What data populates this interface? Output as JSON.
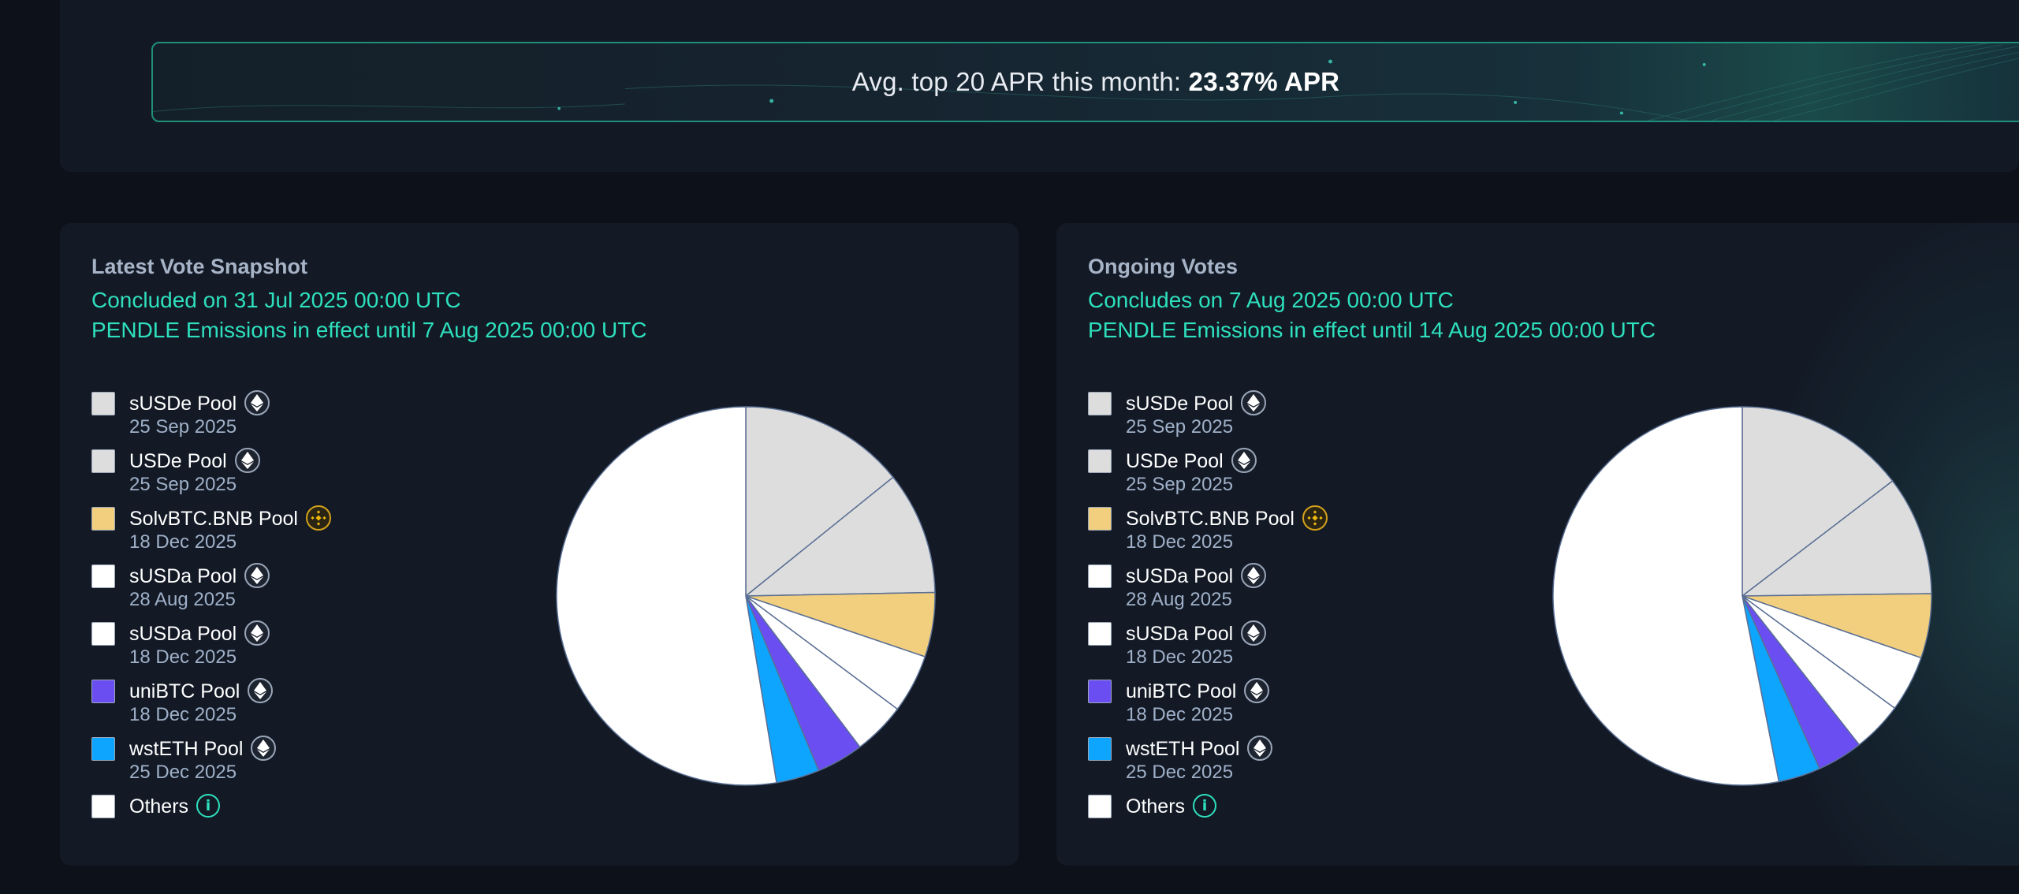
{
  "banner": {
    "label": "Avg. top 20 APR this month:",
    "value": "23.37% APR"
  },
  "colors": {
    "accent": "#2ee0bd",
    "swatch_gray": "#dddddd",
    "swatch_yellow": "#f2cf7f",
    "swatch_white": "#ffffff",
    "swatch_purple": "#6a4ef2",
    "swatch_blue": "#0ea5ff"
  },
  "latest": {
    "title": "Latest Vote Snapshot",
    "concluded": "Concluded on 31 Jul 2025 00:00 UTC",
    "emissions": "PENDLE Emissions in effect until 7 Aug 2025 00:00 UTC",
    "pools": [
      {
        "name": "sUSDe Pool",
        "date": "25 Sep 2025",
        "chain": "ethereum-icon",
        "color": "#dddddd"
      },
      {
        "name": "USDe Pool",
        "date": "25 Sep 2025",
        "chain": "ethereum-icon",
        "color": "#dddddd"
      },
      {
        "name": "SolvBTC.BNB Pool",
        "date": "18 Dec 2025",
        "chain": "bnb-icon",
        "color": "#f2cf7f"
      },
      {
        "name": "sUSDa Pool",
        "date": "28 Aug 2025",
        "chain": "ethereum-icon",
        "color": "#ffffff"
      },
      {
        "name": "sUSDa Pool",
        "date": "18 Dec 2025",
        "chain": "ethereum-icon",
        "color": "#ffffff"
      },
      {
        "name": "uniBTC Pool",
        "date": "18 Dec 2025",
        "chain": "ethereum-icon",
        "color": "#6a4ef2"
      },
      {
        "name": "wstETH Pool",
        "date": "25 Dec 2025",
        "chain": "ethereum-icon",
        "color": "#0ea5ff"
      },
      {
        "name": "Others",
        "date": "",
        "chain": "info-icon",
        "color": "#ffffff"
      }
    ],
    "chart_data": {
      "type": "pie",
      "series": [
        {
          "name": "sUSDe Pool",
          "value": 14.2,
          "color": "#dddddd"
        },
        {
          "name": "USDe Pool",
          "value": 10.5,
          "color": "#dddddd"
        },
        {
          "name": "SolvBTC.BNB Pool",
          "value": 5.5,
          "color": "#f2cf7f"
        },
        {
          "name": "sUSDa Pool",
          "value": 5.0,
          "color": "#ffffff"
        },
        {
          "name": "sUSDa Pool",
          "value": 4.5,
          "color": "#ffffff"
        },
        {
          "name": "uniBTC Pool",
          "value": 4.0,
          "color": "#6a4ef2"
        },
        {
          "name": "wstETH Pool",
          "value": 3.7,
          "color": "#0ea5ff"
        },
        {
          "name": "Others",
          "value": 52.6,
          "color": "#ffffff"
        }
      ]
    }
  },
  "ongoing": {
    "title": "Ongoing Votes",
    "concluded": "Concludes on 7 Aug 2025 00:00 UTC",
    "emissions": "PENDLE Emissions in effect until 14 Aug 2025 00:00 UTC",
    "pools": [
      {
        "name": "sUSDe Pool",
        "date": "25 Sep 2025",
        "chain": "ethereum-icon",
        "color": "#dddddd"
      },
      {
        "name": "USDe Pool",
        "date": "25 Sep 2025",
        "chain": "ethereum-icon",
        "color": "#dddddd"
      },
      {
        "name": "SolvBTC.BNB Pool",
        "date": "18 Dec 2025",
        "chain": "bnb-icon",
        "color": "#f2cf7f"
      },
      {
        "name": "sUSDa Pool",
        "date": "28 Aug 2025",
        "chain": "ethereum-icon",
        "color": "#ffffff"
      },
      {
        "name": "sUSDa Pool",
        "date": "18 Dec 2025",
        "chain": "ethereum-icon",
        "color": "#ffffff"
      },
      {
        "name": "uniBTC Pool",
        "date": "18 Dec 2025",
        "chain": "ethereum-icon",
        "color": "#6a4ef2"
      },
      {
        "name": "wstETH Pool",
        "date": "25 Dec 2025",
        "chain": "ethereum-icon",
        "color": "#0ea5ff"
      },
      {
        "name": "Others",
        "date": "",
        "chain": "info-icon",
        "color": "#ffffff"
      }
    ],
    "chart_data": {
      "type": "pie",
      "series": [
        {
          "name": "sUSDe Pool",
          "value": 14.6,
          "color": "#dddddd"
        },
        {
          "name": "USDe Pool",
          "value": 10.2,
          "color": "#dddddd"
        },
        {
          "name": "SolvBTC.BNB Pool",
          "value": 5.5,
          "color": "#f2cf7f"
        },
        {
          "name": "sUSDa Pool",
          "value": 4.8,
          "color": "#ffffff"
        },
        {
          "name": "sUSDa Pool",
          "value": 4.3,
          "color": "#ffffff"
        },
        {
          "name": "uniBTC Pool",
          "value": 3.9,
          "color": "#6a4ef2"
        },
        {
          "name": "wstETH Pool",
          "value": 3.6,
          "color": "#0ea5ff"
        },
        {
          "name": "Others",
          "value": 53.1,
          "color": "#ffffff"
        }
      ]
    }
  }
}
